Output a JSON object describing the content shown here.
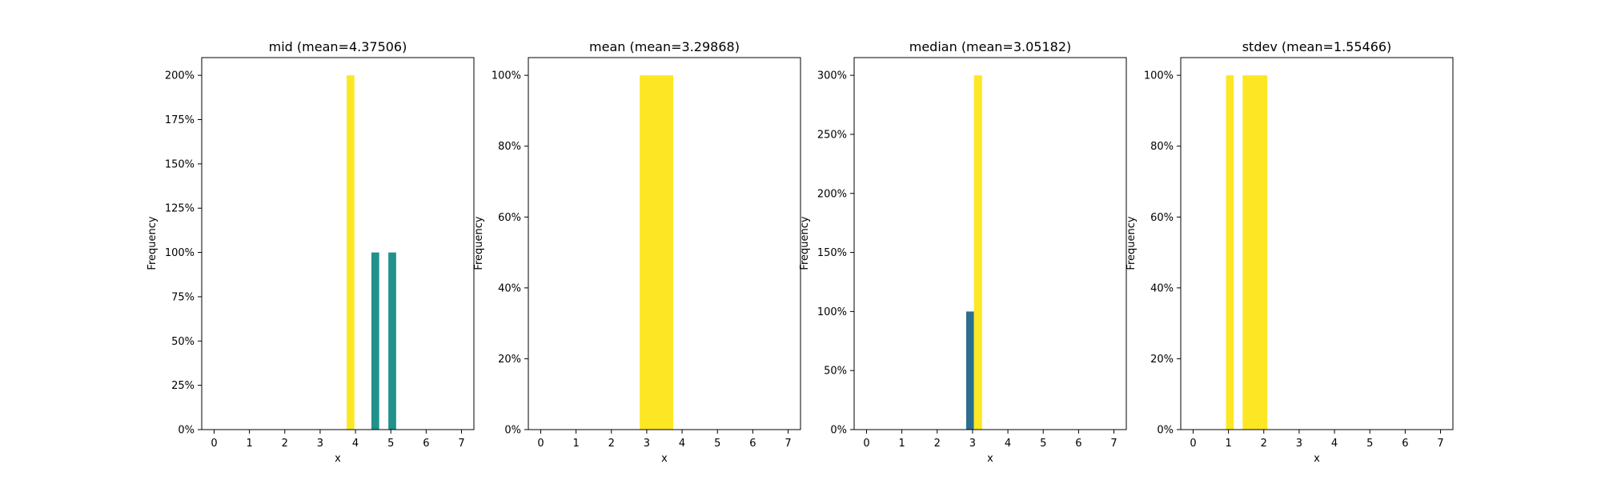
{
  "chart_data": [
    {
      "type": "bar",
      "title": "mid (mean=4.37506)",
      "xlabel": "x",
      "ylabel": "Frequency",
      "xlim": [
        -0.35,
        7.35
      ],
      "ylim": [
        0,
        2.1
      ],
      "xticks": [
        "0",
        "1",
        "2",
        "3",
        "4",
        "5",
        "6",
        "7"
      ],
      "yticks": [
        0,
        0.25,
        0.5,
        0.75,
        1.0,
        1.25,
        1.5,
        1.75,
        2.0
      ],
      "ytick_labels": [
        "0%",
        "25%",
        "50%",
        "75%",
        "100%",
        "125%",
        "150%",
        "175%",
        "200%"
      ],
      "grid": false,
      "bars": [
        {
          "x0": 3.75,
          "x1": 3.97,
          "value": 2.0,
          "color": "#fde725"
        },
        {
          "x0": 4.45,
          "x1": 4.67,
          "value": 1.0,
          "color": "#21918c"
        },
        {
          "x0": 4.93,
          "x1": 5.15,
          "value": 1.0,
          "color": "#21918c"
        }
      ]
    },
    {
      "type": "bar",
      "title": "mean (mean=3.29868)",
      "xlabel": "x",
      "ylabel": "Frequency",
      "xlim": [
        -0.35,
        7.35
      ],
      "ylim": [
        0,
        1.05
      ],
      "xticks": [
        "0",
        "1",
        "2",
        "3",
        "4",
        "5",
        "6",
        "7"
      ],
      "yticks": [
        0,
        0.2,
        0.4,
        0.6,
        0.8,
        1.0
      ],
      "ytick_labels": [
        "0%",
        "20%",
        "40%",
        "60%",
        "80%",
        "100%"
      ],
      "grid": false,
      "bars": [
        {
          "x0": 2.8,
          "x1": 3.75,
          "value": 1.0,
          "color": "#fde725"
        }
      ]
    },
    {
      "type": "bar",
      "title": "median (mean=3.05182)",
      "xlabel": "x",
      "ylabel": "Frequency",
      "xlim": [
        -0.35,
        7.35
      ],
      "ylim": [
        0,
        3.15
      ],
      "xticks": [
        "0",
        "1",
        "2",
        "3",
        "4",
        "5",
        "6",
        "7"
      ],
      "yticks": [
        0,
        0.5,
        1.0,
        1.5,
        2.0,
        2.5,
        3.0
      ],
      "ytick_labels": [
        "0%",
        "50%",
        "100%",
        "150%",
        "200%",
        "250%",
        "300%"
      ],
      "grid": false,
      "bars": [
        {
          "x0": 2.82,
          "x1": 3.04,
          "value": 1.0,
          "color": "#2c6e8e"
        },
        {
          "x0": 3.04,
          "x1": 3.27,
          "value": 3.0,
          "color": "#fde725"
        }
      ]
    },
    {
      "type": "bar",
      "title": "stdev (mean=1.55466)",
      "xlabel": "x",
      "ylabel": "Frequency",
      "xlim": [
        -0.35,
        7.35
      ],
      "ylim": [
        0,
        1.05
      ],
      "xticks": [
        "0",
        "1",
        "2",
        "3",
        "4",
        "5",
        "6",
        "7"
      ],
      "yticks": [
        0,
        0.2,
        0.4,
        0.6,
        0.8,
        1.0
      ],
      "ytick_labels": [
        "0%",
        "20%",
        "40%",
        "60%",
        "80%",
        "100%"
      ],
      "grid": false,
      "bars": [
        {
          "x0": 0.93,
          "x1": 1.15,
          "value": 1.0,
          "color": "#fde725"
        },
        {
          "x0": 1.4,
          "x1": 2.1,
          "value": 1.0,
          "color": "#fde725"
        }
      ]
    }
  ]
}
